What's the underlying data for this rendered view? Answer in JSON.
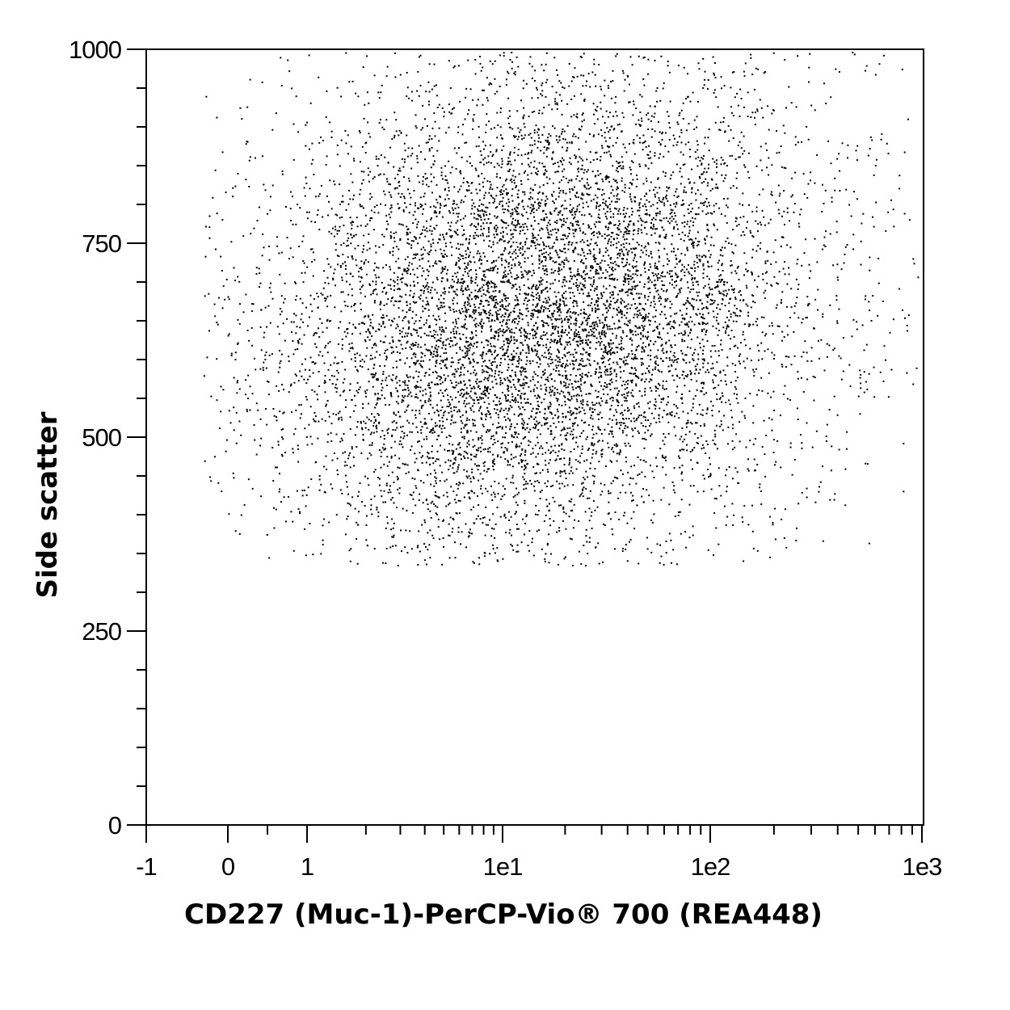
{
  "chart_data": {
    "type": "scatter",
    "title": "",
    "xlabel": "CD227 (Muc-1)-PerCP-Vio® 700 (REA448)",
    "ylabel": "Side scatter",
    "x_scale": "biexponential",
    "xlim": [
      -1,
      1000
    ],
    "ylim": [
      0,
      1000
    ],
    "x_ticks": [
      {
        "value": -1,
        "label": "-1"
      },
      {
        "value": 0,
        "label": "0"
      },
      {
        "value": 1,
        "label": "1"
      },
      {
        "value": 10,
        "label": "1e1"
      },
      {
        "value": 100,
        "label": "1e2"
      },
      {
        "value": 1000,
        "label": "1e3"
      }
    ],
    "y_ticks": [
      {
        "value": 0,
        "label": "0"
      },
      {
        "value": 250,
        "label": "250"
      },
      {
        "value": 500,
        "label": "500"
      },
      {
        "value": 750,
        "label": "750"
      },
      {
        "value": 1000,
        "label": "1000"
      }
    ],
    "grid": false,
    "legend": "none",
    "point_color": "#000000",
    "population": {
      "event_count": 9000,
      "x_center": 15,
      "x_range": [
        -0.3,
        1000
      ],
      "y_center": 660,
      "y_range": [
        335,
        1000
      ],
      "density": "dense central cloud, sparse halo"
    }
  }
}
